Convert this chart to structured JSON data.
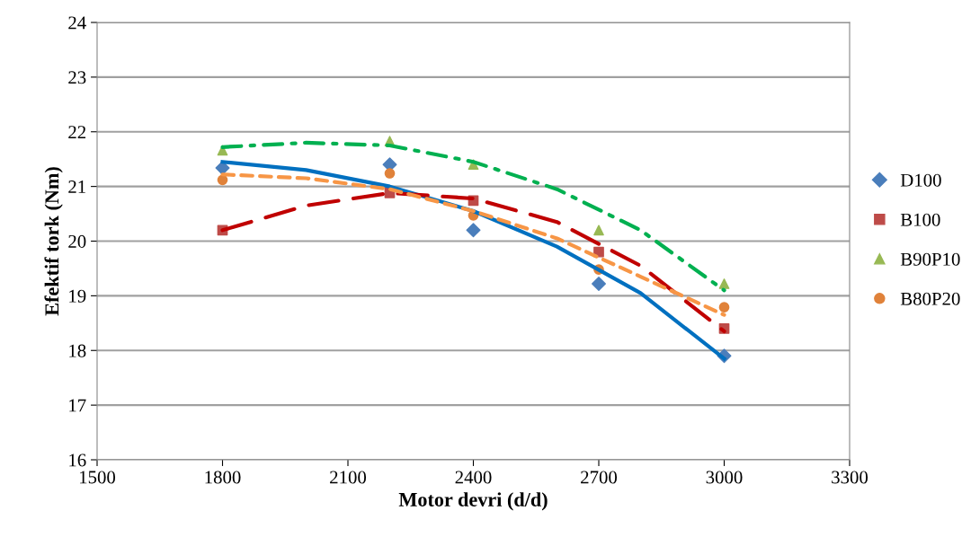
{
  "chart_data": {
    "type": "scatter",
    "xlabel": "Motor devri (d/d)",
    "ylabel": "Efektif tork (Nm)",
    "x": [
      1800,
      2200,
      2400,
      2700,
      3000
    ],
    "xlim": [
      1500,
      3300
    ],
    "xticks": [
      1500,
      1800,
      2100,
      2400,
      2700,
      3000,
      3300
    ],
    "ylim": [
      16,
      24
    ],
    "yticks": [
      16,
      17,
      18,
      19,
      20,
      21,
      22,
      23,
      24
    ],
    "grid": "y",
    "legend": "right",
    "series": [
      {
        "name": "D100",
        "color": "#4a7ebb",
        "marker": "diamond",
        "values": [
          21.34,
          21.4,
          20.2,
          19.22,
          17.9
        ]
      },
      {
        "name": "B100",
        "color": "#be4b48",
        "marker": "square",
        "values": [
          20.2,
          20.88,
          20.74,
          19.8,
          18.4
        ]
      },
      {
        "name": "B90P10",
        "color": "#98b954",
        "marker": "triangle",
        "values": [
          21.66,
          21.83,
          21.4,
          20.2,
          19.22
        ]
      },
      {
        "name": "B80P20",
        "color": "#e0823a",
        "marker": "circle",
        "values": [
          21.12,
          21.24,
          20.47,
          19.48,
          18.79
        ]
      },
      {
        "type": "line",
        "color": "#0070c0",
        "line_style": "solid",
        "x": [
          1800,
          2000,
          2200,
          2400,
          2600,
          2800,
          3000
        ],
        "values": [
          21.45,
          21.3,
          21.0,
          20.55,
          19.9,
          19.05,
          17.85
        ]
      },
      {
        "type": "line",
        "color": "#c00000",
        "line_style": "dashed",
        "x": [
          1800,
          2000,
          2200,
          2400,
          2600,
          2800,
          3000
        ],
        "values": [
          20.2,
          20.65,
          20.88,
          20.78,
          20.35,
          19.55,
          18.35
        ]
      },
      {
        "type": "line",
        "color": "#00b050",
        "line_style": "dashdot",
        "x": [
          1800,
          2000,
          2200,
          2400,
          2600,
          2800,
          3000
        ],
        "values": [
          21.72,
          21.8,
          21.75,
          21.45,
          20.95,
          20.2,
          19.1
        ]
      },
      {
        "type": "line",
        "color": "#f79646",
        "line_style": "dotted",
        "x": [
          1800,
          2000,
          2200,
          2400,
          2600,
          2800,
          3000
        ],
        "values": [
          21.22,
          21.15,
          20.95,
          20.55,
          20.05,
          19.35,
          18.65
        ]
      }
    ]
  }
}
